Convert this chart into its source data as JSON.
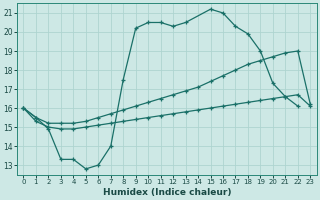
{
  "xlabel": "Humidex (Indice chaleur)",
  "background_color": "#cde8e5",
  "grid_color": "#aed4d0",
  "line_color": "#1a7068",
  "xlim": [
    -0.5,
    23.5
  ],
  "ylim": [
    12.5,
    21.5
  ],
  "xticks": [
    0,
    1,
    2,
    3,
    4,
    5,
    6,
    7,
    8,
    9,
    10,
    11,
    12,
    13,
    14,
    15,
    16,
    17,
    18,
    19,
    20,
    21,
    22,
    23
  ],
  "yticks": [
    13,
    14,
    15,
    16,
    17,
    18,
    19,
    20,
    21
  ],
  "line1_x": [
    0,
    1,
    2,
    3,
    4,
    5,
    6,
    7,
    8,
    9,
    10,
    11,
    12,
    13,
    15,
    16,
    17,
    18,
    19,
    20,
    21,
    22
  ],
  "line1_y": [
    16.0,
    15.5,
    14.9,
    13.3,
    13.3,
    12.8,
    13.0,
    14.0,
    17.5,
    20.2,
    20.5,
    20.5,
    20.3,
    20.5,
    21.2,
    21.0,
    20.3,
    19.9,
    19.0,
    17.3,
    16.6,
    16.1
  ],
  "line2_x": [
    0,
    1,
    2,
    3,
    4,
    5,
    6,
    7,
    8,
    9,
    10,
    11,
    12,
    13,
    14,
    15,
    16,
    17,
    18,
    19,
    20,
    21,
    22,
    23
  ],
  "line2_y": [
    16.0,
    15.5,
    15.2,
    15.2,
    15.2,
    15.3,
    15.5,
    15.7,
    15.9,
    16.1,
    16.3,
    16.5,
    16.7,
    16.9,
    17.1,
    17.4,
    17.7,
    18.0,
    18.3,
    18.5,
    18.7,
    18.9,
    19.0,
    16.2
  ],
  "line3_x": [
    0,
    1,
    2,
    3,
    4,
    5,
    6,
    7,
    8,
    9,
    10,
    11,
    12,
    13,
    14,
    15,
    16,
    17,
    18,
    19,
    20,
    21,
    22,
    23
  ],
  "line3_y": [
    16.0,
    15.3,
    15.0,
    14.9,
    14.9,
    15.0,
    15.1,
    15.2,
    15.3,
    15.4,
    15.5,
    15.6,
    15.7,
    15.8,
    15.9,
    16.0,
    16.1,
    16.2,
    16.3,
    16.4,
    16.5,
    16.6,
    16.7,
    16.1
  ]
}
